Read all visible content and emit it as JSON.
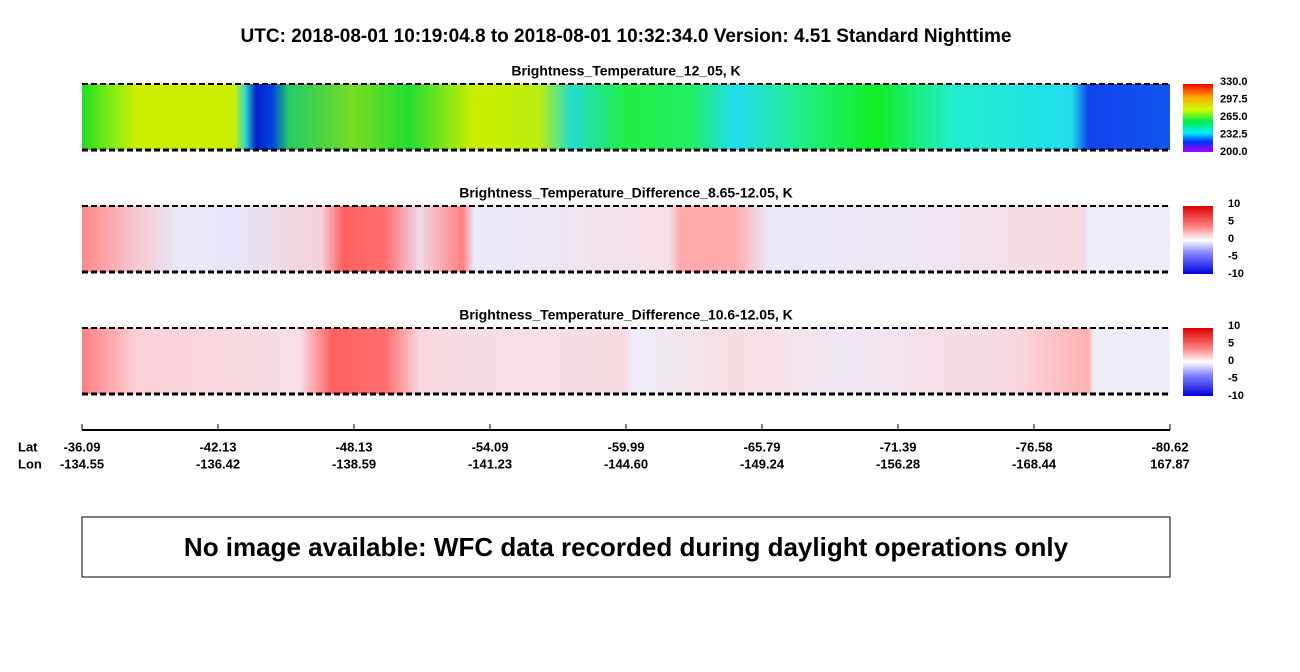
{
  "header": {
    "title": "UTC:  2018-08-01   10:19:04.8  to  2018-08-01   10:32:34.0    Version: 4.51  Standard Nighttime"
  },
  "panels": [
    {
      "title": "Brightness_Temperature_12_05, K",
      "colorbar_labels": [
        "330.0",
        "297.5",
        "265.0",
        "232.5",
        "200.0"
      ]
    },
    {
      "title": "Brightness_Temperature_Difference_8.65-12.05, K",
      "colorbar_labels": [
        "10",
        "5",
        "0",
        "-5",
        "-10"
      ]
    },
    {
      "title": "Brightness_Temperature_Difference_10.6-12.05, K",
      "colorbar_labels": [
        "10",
        "5",
        "0",
        "-5",
        "-10"
      ]
    }
  ],
  "axis": {
    "lat_label": "Lat",
    "lon_label": "Lon",
    "lat": [
      "-36.09",
      "-42.13",
      "-48.13",
      "-54.09",
      "-59.99",
      "-65.79",
      "-71.39",
      "-76.58",
      "-80.62"
    ],
    "lon": [
      "-134.55",
      "-136.42",
      "-138.59",
      "-141.23",
      "-144.60",
      "-149.24",
      "-156.28",
      "-168.44",
      "167.87"
    ]
  },
  "message": "No image available: WFC data recorded during daylight operations only"
}
